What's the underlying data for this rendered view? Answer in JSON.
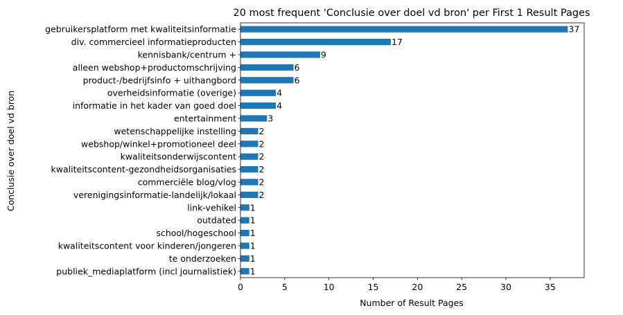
{
  "chart_data": {
    "type": "bar",
    "orientation": "horizontal",
    "title": "20 most frequent 'Conclusie over doel vd bron' per First 1 Result Pages",
    "xlabel": "Number of Result Pages",
    "ylabel": "Conclusie over doel vd bron",
    "xlim": [
      0,
      38.85
    ],
    "xticks": [
      0,
      5,
      10,
      15,
      20,
      25,
      30,
      35
    ],
    "grid": false,
    "bar_color": "#1f77b4",
    "categories": [
      "gebruikersplatform met kwaliteitsinformatie",
      "div. commercieel informatieproducten",
      "kennisbank/centrum +",
      "alleen webshop+productomschrijving",
      "product-/bedrijfsinfo + uithangbord",
      "overheidsinformatie (overige)",
      "informatie in het kader van goed doel",
      "entertainment",
      "wetenschappelijke instelling",
      "webshop/winkel+promotioneel deel",
      "kwaliteitsonderwijscontent",
      "kwaliteitscontent-gezondheidsorganisaties",
      "commerciële blog/vlog",
      "verenigingsinformatie-landelijk/lokaal",
      "link-vehikel",
      "outdated",
      "school/hogeschool",
      "kwaliteitscontent voor kinderen/jongeren",
      "te onderzoeken",
      "publiek_mediaplatform (incl journalistiek)"
    ],
    "values": [
      37,
      17,
      9,
      6,
      6,
      4,
      4,
      3,
      2,
      2,
      2,
      2,
      2,
      2,
      1,
      1,
      1,
      1,
      1,
      1
    ]
  }
}
